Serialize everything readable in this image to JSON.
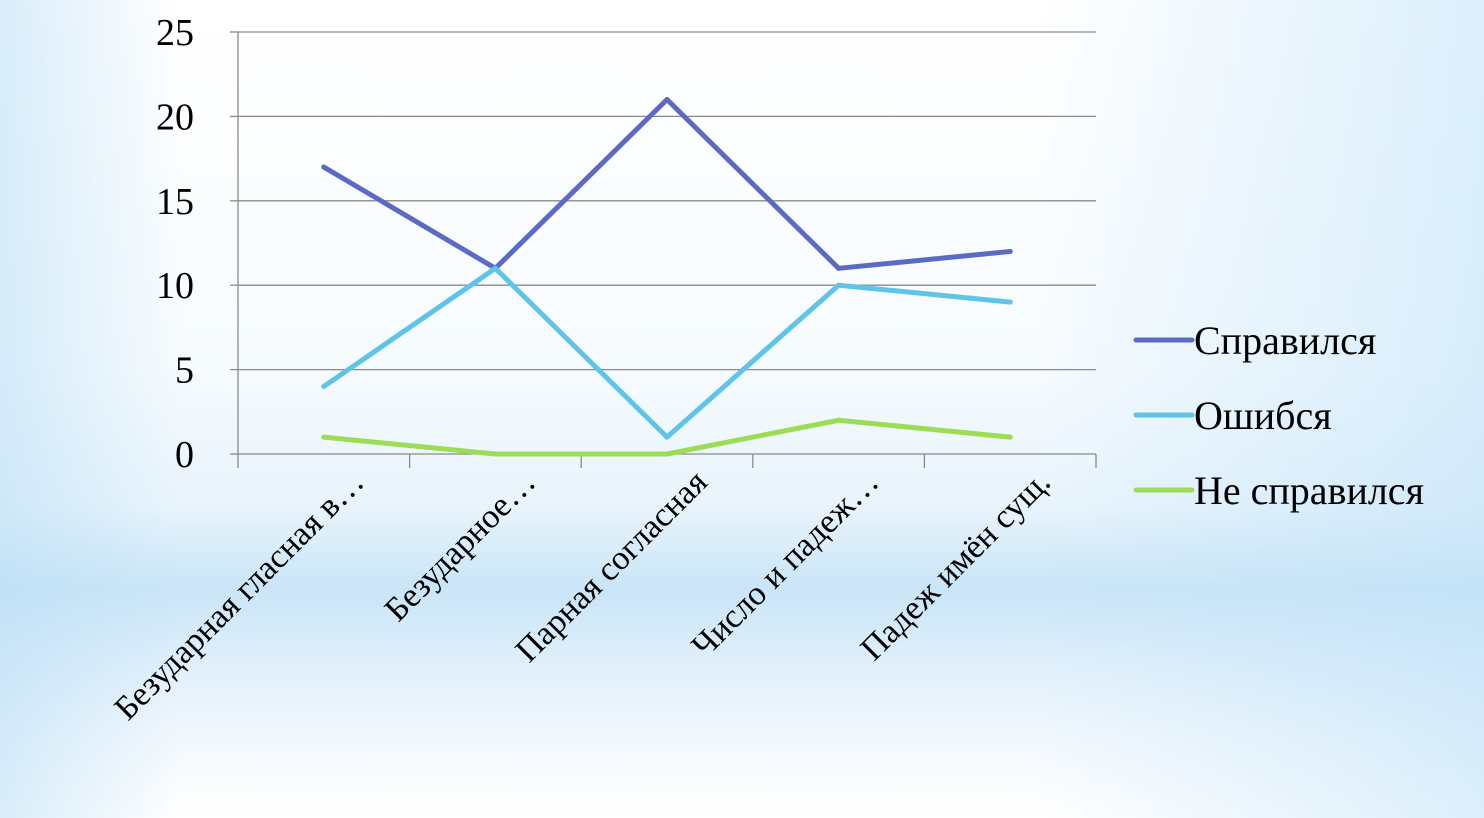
{
  "chart_data": {
    "type": "line",
    "categories": [
      "Безударная гласная в…",
      "Безударное…",
      "Парная согласная",
      "Число и падеж…",
      "Падеж имён сущ."
    ],
    "series": [
      {
        "name": "Справился",
        "values": [
          17,
          11,
          21,
          11,
          12
        ],
        "color": "#5b6ac4"
      },
      {
        "name": "Ошибся",
        "values": [
          4,
          11,
          1,
          10,
          9
        ],
        "color": "#5fc4e8"
      },
      {
        "name": "Не справился",
        "values": [
          1,
          0,
          0,
          2,
          1
        ],
        "color": "#9ddc54"
      }
    ],
    "ylim": [
      0,
      25
    ],
    "yticks": [
      "0",
      "5",
      "10",
      "15",
      "20",
      "25"
    ],
    "grid": true,
    "legend_position": "right"
  }
}
